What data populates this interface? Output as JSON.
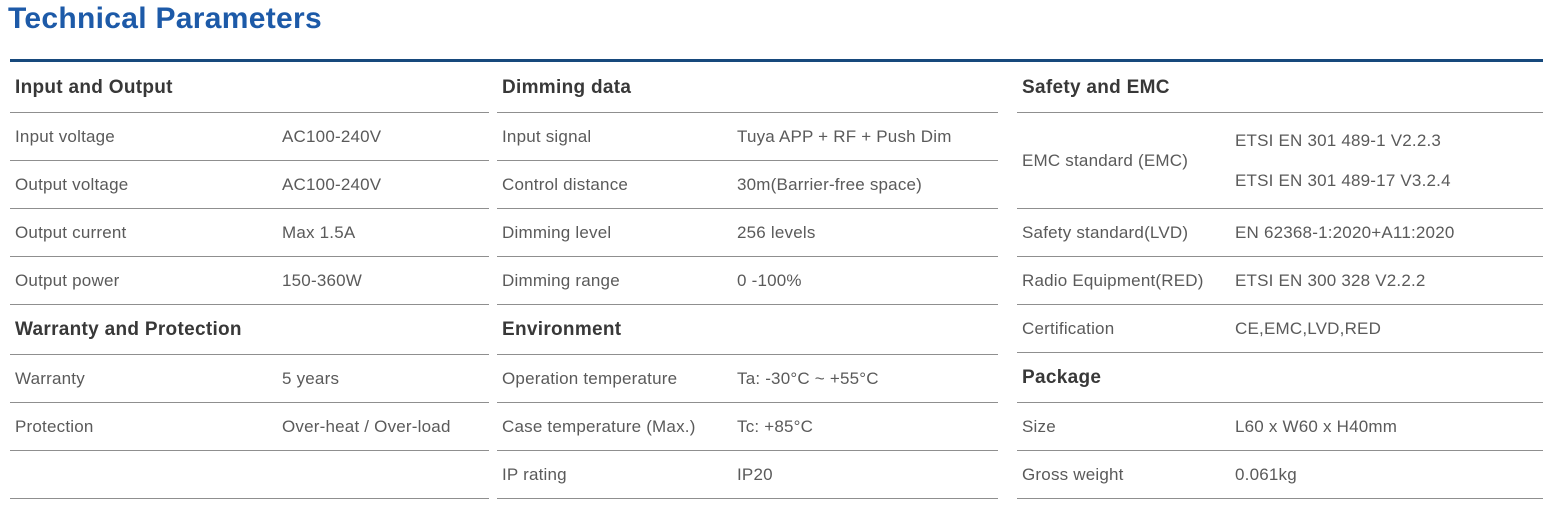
{
  "title": "Technical Parameters",
  "colors": {
    "title_blue": "#1d5aa8",
    "rule_blue": "#17497c"
  },
  "columns": [
    {
      "sections": [
        {
          "title": "Input and Output",
          "rows": [
            {
              "label": "Input voltage",
              "values": [
                "AC100-240V"
              ]
            },
            {
              "label": "Output voltage",
              "values": [
                "AC100-240V"
              ]
            },
            {
              "label": "Output current",
              "values": [
                "Max 1.5A"
              ]
            },
            {
              "label": "Output power",
              "values": [
                "150-360W"
              ]
            }
          ]
        },
        {
          "title": "Warranty and Protection",
          "rows": [
            {
              "label": "Warranty",
              "values": [
                "5 years"
              ]
            },
            {
              "label": "Protection",
              "values": [
                "Over-heat / Over-load"
              ]
            },
            {
              "label": "",
              "values": [
                ""
              ]
            }
          ]
        }
      ]
    },
    {
      "sections": [
        {
          "title": "Dimming data",
          "rows": [
            {
              "label": "Input signal",
              "values": [
                "Tuya APP + RF + Push Dim"
              ]
            },
            {
              "label": "Control distance",
              "values": [
                "30m(Barrier-free space)"
              ]
            },
            {
              "label": "Dimming level",
              "values": [
                "256 levels"
              ]
            },
            {
              "label": "Dimming range",
              "values": [
                "0 -100%"
              ]
            }
          ]
        },
        {
          "title": "Environment",
          "rows": [
            {
              "label": "Operation temperature",
              "values": [
                "Ta: -30°C ~ +55°C"
              ]
            },
            {
              "label": "Case temperature (Max.)",
              "values": [
                "Tc: +85°C"
              ]
            },
            {
              "label": "IP rating",
              "values": [
                "IP20"
              ]
            }
          ]
        }
      ]
    },
    {
      "sections": [
        {
          "title": "Safety and EMC",
          "rows": [
            {
              "label": "EMC standard (EMC)",
              "values": [
                "ETSI EN 301 489-1 V2.2.3",
                "ETSI EN 301 489-17 V3.2.4"
              ]
            },
            {
              "label": "Safety standard(LVD)",
              "values": [
                "EN 62368-1:2020+A11:2020"
              ]
            },
            {
              "label": "Radio Equipment(RED)",
              "values": [
                "ETSI EN 300 328 V2.2.2"
              ]
            },
            {
              "label": "Certification",
              "values": [
                "CE,EMC,LVD,RED"
              ]
            }
          ]
        },
        {
          "title": "Package",
          "rows": [
            {
              "label": "Size",
              "values": [
                "L60 x W60 x H40mm"
              ]
            },
            {
              "label": "Gross weight",
              "values": [
                "0.061kg"
              ]
            }
          ]
        }
      ]
    }
  ]
}
